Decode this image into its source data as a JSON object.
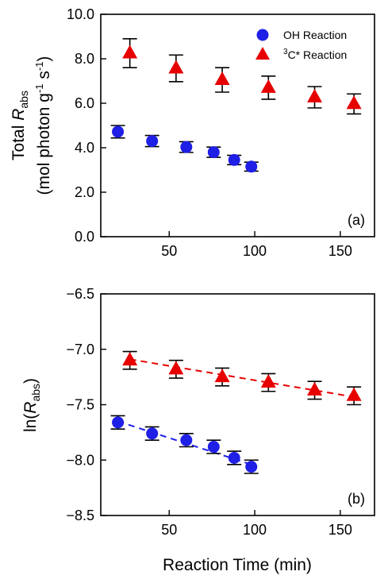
{
  "chart_data": [
    {
      "type": "scatter",
      "panel_label": "(a)",
      "ylabel_line1_pre": "Total ",
      "ylabel_line1_italic": "R",
      "ylabel_line1_sub": "abs",
      "ylabel_line2_pre": "(mol photon g",
      "ylabel_line2_sup1": "-1",
      "ylabel_line2_mid": " s",
      "ylabel_line2_sup2": "-1",
      "ylabel_line2_post": ")",
      "xlim": [
        10,
        170
      ],
      "ylim": [
        0.0,
        10.0
      ],
      "xticks": [
        "50",
        "100",
        "150"
      ],
      "yticks": [
        "0.0",
        "2.0",
        "4.0",
        "6.0",
        "8.0",
        "10.0"
      ],
      "legend_position": "top-right",
      "series": [
        {
          "name": "OH Reaction",
          "marker": "circle",
          "color": "#1f1fe6",
          "x": [
            20,
            40,
            60,
            76,
            88,
            98
          ],
          "y": [
            4.72,
            4.3,
            4.03,
            3.8,
            3.45,
            3.15
          ],
          "yerr": [
            0.28,
            0.25,
            0.24,
            0.23,
            0.21,
            0.2
          ]
        },
        {
          "name_sup": "3",
          "name_main": "C* Reaction",
          "marker": "triangle",
          "color": "#e60000",
          "x": [
            27,
            54,
            81,
            108,
            135,
            158
          ],
          "y": [
            8.25,
            7.57,
            7.05,
            6.7,
            6.27,
            5.97
          ],
          "yerr": [
            0.65,
            0.6,
            0.55,
            0.52,
            0.48,
            0.45
          ]
        }
      ]
    },
    {
      "type": "scatter",
      "panel_label": "(b)",
      "ylabel_pre": "ln(",
      "ylabel_italic": "R",
      "ylabel_sub": "abs",
      "ylabel_post": ")",
      "xlabel": "Reaction Time (min)",
      "xlim": [
        10,
        170
      ],
      "ylim": [
        -8.5,
        -6.5
      ],
      "xticks": [
        "50",
        "100",
        "150"
      ],
      "yticks": [
        "-6.5",
        "-7.0",
        "-7.5",
        "-8.0",
        "-8.5"
      ],
      "series": [
        {
          "marker": "circle",
          "color": "#1f1fe6",
          "x": [
            20,
            40,
            60,
            76,
            88,
            98
          ],
          "y": [
            -7.66,
            -7.76,
            -7.82,
            -7.88,
            -7.98,
            -8.06
          ],
          "yerr": [
            0.06,
            0.06,
            0.06,
            0.06,
            0.06,
            0.06
          ],
          "fit": {
            "x": [
              20,
              98
            ],
            "y": [
              -7.65,
              -8.04
            ]
          }
        },
        {
          "marker": "triangle",
          "color": "#e60000",
          "x": [
            27,
            54,
            81,
            108,
            135,
            158
          ],
          "y": [
            -7.1,
            -7.18,
            -7.25,
            -7.3,
            -7.37,
            -7.42
          ],
          "yerr": [
            0.08,
            0.08,
            0.08,
            0.08,
            0.08,
            0.08
          ],
          "fit": {
            "x": [
              27,
              158
            ],
            "y": [
              -7.09,
              -7.43
            ]
          }
        }
      ]
    }
  ]
}
